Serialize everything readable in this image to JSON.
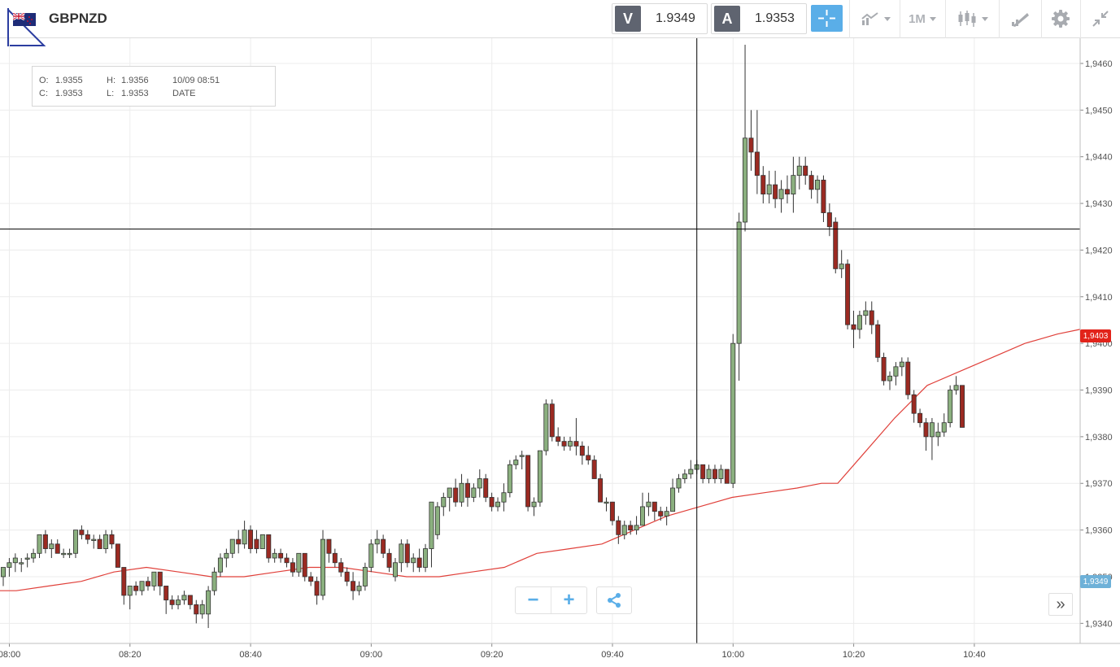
{
  "toolbar": {
    "symbol": "GBPNZD",
    "flag_icon": "gb-nz-flag-icon",
    "sell": {
      "letter": "V",
      "price": "1.9349"
    },
    "buy": {
      "letter": "A",
      "price": "1.9353"
    },
    "timeframe_label": "1M",
    "icons": [
      "crosshair-icon",
      "chart-type-icon",
      "timeframe-icon",
      "candlestick-icon",
      "drawing-tools-icon",
      "settings-icon",
      "collapse-icon"
    ]
  },
  "ohlc": {
    "o_label": "O:",
    "o_value": "1.9355",
    "h_label": "H:",
    "h_value": "1.9356",
    "c_label": "C:",
    "c_value": "1.9353",
    "l_label": "L:",
    "l_value": "1.9353",
    "datetime": "10/09 08:51",
    "date_label": "DATE"
  },
  "price_tags": {
    "current": "1,9403",
    "bid": "1,9349"
  },
  "controls": {
    "zoom_out": "−",
    "zoom_in": "+",
    "expand": "»"
  },
  "colors": {
    "up": "#8bb07f",
    "down": "#9b2a22",
    "ma": "#e0403a",
    "crosshair": "#000000",
    "accent": "#5aaee8"
  },
  "chart_data": {
    "type": "candlestick",
    "symbol": "GBPNZD",
    "timeframe": "1M",
    "x_ticks": [
      "08:00",
      "08:20",
      "08:40",
      "09:00",
      "09:20",
      "09:40",
      "10:00",
      "10:20",
      "10:40"
    ],
    "y_ticks": [
      "1,9340",
      "1,9350",
      "1,9360",
      "1,9370",
      "1,9380",
      "1,9390",
      "1,9400",
      "1,9410",
      "1,9420",
      "1,9430",
      "1,9440",
      "1,9450",
      "1,9460"
    ],
    "ylim": [
      1.93357,
      1.94654
    ],
    "crosshair_price": 1.94245,
    "grid": true,
    "candles": [
      [
        1.935,
        1.9352,
        1.9348,
        1.9352
      ],
      [
        1.9352,
        1.9354,
        1.935,
        1.9353
      ],
      [
        1.9353,
        1.9355,
        1.9351,
        1.9354
      ],
      [
        1.9353,
        1.9354,
        1.9351,
        1.9353
      ],
      [
        1.9354,
        1.9355,
        1.9352,
        1.9354
      ],
      [
        1.9354,
        1.9356,
        1.9353,
        1.9355
      ],
      [
        1.9355,
        1.9359,
        1.9354,
        1.9359
      ],
      [
        1.9359,
        1.936,
        1.9355,
        1.9356
      ],
      [
        1.9356,
        1.9358,
        1.9354,
        1.9357
      ],
      [
        1.9357,
        1.9358,
        1.9355,
        1.9355
      ],
      [
        1.9355,
        1.9356,
        1.9354,
        1.9355
      ],
      [
        1.9355,
        1.9356,
        1.9354,
        1.9355
      ],
      [
        1.9355,
        1.936,
        1.9354,
        1.936
      ],
      [
        1.936,
        1.9361,
        1.9358,
        1.9359
      ],
      [
        1.9359,
        1.936,
        1.9357,
        1.9358
      ],
      [
        1.9358,
        1.9359,
        1.9356,
        1.9358
      ],
      [
        1.9358,
        1.9359,
        1.9356,
        1.9356
      ],
      [
        1.9356,
        1.936,
        1.9355,
        1.9359
      ],
      [
        1.9359,
        1.936,
        1.9356,
        1.9357
      ],
      [
        1.9357,
        1.9357,
        1.9352,
        1.9352
      ],
      [
        1.9352,
        1.9352,
        1.9344,
        1.9346
      ],
      [
        1.9346,
        1.9348,
        1.9343,
        1.9348
      ],
      [
        1.9348,
        1.9349,
        1.9346,
        1.9347
      ],
      [
        1.9347,
        1.9349,
        1.9346,
        1.9349
      ],
      [
        1.9349,
        1.935,
        1.9347,
        1.9348
      ],
      [
        1.9348,
        1.9351,
        1.9347,
        1.9351
      ],
      [
        1.9351,
        1.9351,
        1.9346,
        1.9348
      ],
      [
        1.9348,
        1.9348,
        1.9342,
        1.9345
      ],
      [
        1.9345,
        1.9346,
        1.9343,
        1.9344
      ],
      [
        1.9344,
        1.9346,
        1.9343,
        1.9345
      ],
      [
        1.9345,
        1.9347,
        1.9344,
        1.9346
      ],
      [
        1.9346,
        1.9346,
        1.9343,
        1.9344
      ],
      [
        1.9344,
        1.9345,
        1.934,
        1.9342
      ],
      [
        1.9342,
        1.9345,
        1.9341,
        1.9344
      ],
      [
        1.9342,
        1.9348,
        1.9339,
        1.9347
      ],
      [
        1.9347,
        1.9352,
        1.9346,
        1.9351
      ],
      [
        1.9351,
        1.9355,
        1.935,
        1.9354
      ],
      [
        1.9354,
        1.9356,
        1.9352,
        1.9355
      ],
      [
        1.9355,
        1.9358,
        1.9354,
        1.9358
      ],
      [
        1.9358,
        1.936,
        1.9355,
        1.9357
      ],
      [
        1.9357,
        1.9362,
        1.9356,
        1.936
      ],
      [
        1.936,
        1.9361,
        1.9355,
        1.9356
      ],
      [
        1.9358,
        1.936,
        1.9355,
        1.9356
      ],
      [
        1.9356,
        1.9359,
        1.9356,
        1.9359
      ],
      [
        1.9359,
        1.9359,
        1.9353,
        1.9354
      ],
      [
        1.9354,
        1.9356,
        1.9353,
        1.9355
      ],
      [
        1.9355,
        1.9356,
        1.9353,
        1.9354
      ],
      [
        1.9354,
        1.9355,
        1.9352,
        1.9353
      ],
      [
        1.9353,
        1.9354,
        1.935,
        1.9351
      ],
      [
        1.9351,
        1.9355,
        1.935,
        1.9355
      ],
      [
        1.9355,
        1.9355,
        1.9349,
        1.935
      ],
      [
        1.935,
        1.9351,
        1.9348,
        1.9349
      ],
      [
        1.9349,
        1.935,
        1.9344,
        1.9346
      ],
      [
        1.9346,
        1.936,
        1.9345,
        1.9358
      ],
      [
        1.9358,
        1.9358,
        1.9353,
        1.9355
      ],
      [
        1.9355,
        1.9356,
        1.9352,
        1.9353
      ],
      [
        1.9353,
        1.9354,
        1.935,
        1.9351
      ],
      [
        1.9351,
        1.9352,
        1.9348,
        1.9349
      ],
      [
        1.9349,
        1.9351,
        1.9345,
        1.9347
      ],
      [
        1.9347,
        1.9349,
        1.9346,
        1.9348
      ],
      [
        1.9348,
        1.9353,
        1.9347,
        1.9352
      ],
      [
        1.9352,
        1.9358,
        1.9351,
        1.9357
      ],
      [
        1.9357,
        1.936,
        1.9355,
        1.9358
      ],
      [
        1.9358,
        1.9359,
        1.9354,
        1.9355
      ],
      [
        1.9355,
        1.9356,
        1.9351,
        1.9352
      ],
      [
        1.935,
        1.9354,
        1.9349,
        1.9353
      ],
      [
        1.9353,
        1.9358,
        1.9351,
        1.9357
      ],
      [
        1.9357,
        1.9358,
        1.9352,
        1.9353
      ],
      [
        1.9353,
        1.9355,
        1.9351,
        1.9354
      ],
      [
        1.9354,
        1.9356,
        1.9351,
        1.9352
      ],
      [
        1.9352,
        1.9357,
        1.9351,
        1.9356
      ],
      [
        1.9356,
        1.9366,
        1.9352,
        1.9366
      ],
      [
        1.9359,
        1.9366,
        1.9358,
        1.9365
      ],
      [
        1.9365,
        1.9368,
        1.9363,
        1.9367
      ],
      [
        1.9367,
        1.9369,
        1.9364,
        1.9369
      ],
      [
        1.9369,
        1.9371,
        1.9365,
        1.9366
      ],
      [
        1.9366,
        1.9372,
        1.9365,
        1.937
      ],
      [
        1.937,
        1.9371,
        1.9365,
        1.9367
      ],
      [
        1.9367,
        1.937,
        1.9366,
        1.9369
      ],
      [
        1.9369,
        1.9373,
        1.9367,
        1.9371
      ],
      [
        1.9371,
        1.9372,
        1.9366,
        1.9367
      ],
      [
        1.9367,
        1.9368,
        1.9364,
        1.9365
      ],
      [
        1.9365,
        1.9367,
        1.9364,
        1.9366
      ],
      [
        1.9366,
        1.937,
        1.9364,
        1.9368
      ],
      [
        1.9368,
        1.9375,
        1.9367,
        1.9374
      ],
      [
        1.9374,
        1.9376,
        1.9373,
        1.9375
      ],
      [
        1.9376,
        1.9377,
        1.9373,
        1.9376
      ],
      [
        1.9376,
        1.9376,
        1.9364,
        1.9365
      ],
      [
        1.9365,
        1.9367,
        1.9363,
        1.9366
      ],
      [
        1.9366,
        1.9377,
        1.9365,
        1.9377
      ],
      [
        1.9377,
        1.9388,
        1.9376,
        1.9387
      ],
      [
        1.9387,
        1.9388,
        1.9379,
        1.938
      ],
      [
        1.938,
        1.9382,
        1.9378,
        1.9379
      ],
      [
        1.9379,
        1.938,
        1.9377,
        1.9378
      ],
      [
        1.9378,
        1.938,
        1.9377,
        1.9379
      ],
      [
        1.9379,
        1.9384,
        1.9376,
        1.9378
      ],
      [
        1.9378,
        1.9379,
        1.9374,
        1.9376
      ],
      [
        1.9376,
        1.9378,
        1.9374,
        1.9375
      ],
      [
        1.9375,
        1.9376,
        1.9371,
        1.9371
      ],
      [
        1.9371,
        1.9372,
        1.9366,
        1.9366
      ],
      [
        1.9366,
        1.9367,
        1.9364,
        1.9366
      ],
      [
        1.9366,
        1.9366,
        1.9361,
        1.9362
      ],
      [
        1.9362,
        1.9363,
        1.9357,
        1.9359
      ],
      [
        1.9359,
        1.9362,
        1.9358,
        1.9361
      ],
      [
        1.9361,
        1.9362,
        1.9359,
        1.936
      ],
      [
        1.936,
        1.9363,
        1.9359,
        1.9361
      ],
      [
        1.9361,
        1.9368,
        1.9361,
        1.9365
      ],
      [
        1.9365,
        1.9368,
        1.9363,
        1.9366
      ],
      [
        1.9366,
        1.9366,
        1.9362,
        1.9364
      ],
      [
        1.9364,
        1.9365,
        1.9362,
        1.9363
      ],
      [
        1.9363,
        1.9365,
        1.9361,
        1.9364
      ],
      [
        1.9364,
        1.9371,
        1.9364,
        1.9369
      ],
      [
        1.9369,
        1.9372,
        1.9368,
        1.9371
      ],
      [
        1.9371,
        1.9373,
        1.937,
        1.9372
      ],
      [
        1.9372,
        1.9375,
        1.9371,
        1.9373
      ],
      [
        1.9373,
        1.9375,
        1.9372,
        1.9374
      ],
      [
        1.9374,
        1.9374,
        1.937,
        1.9371
      ],
      [
        1.9371,
        1.9374,
        1.937,
        1.9373
      ],
      [
        1.9373,
        1.9374,
        1.937,
        1.9371
      ],
      [
        1.9371,
        1.9374,
        1.937,
        1.9373
      ],
      [
        1.9373,
        1.9373,
        1.937,
        1.937
      ],
      [
        1.937,
        1.9402,
        1.9369,
        1.94
      ],
      [
        1.94,
        1.9428,
        1.9392,
        1.9426
      ],
      [
        1.9426,
        1.9464,
        1.9424,
        1.9444
      ],
      [
        1.9444,
        1.945,
        1.9437,
        1.9441
      ],
      [
        1.9441,
        1.945,
        1.9432,
        1.9436
      ],
      [
        1.9436,
        1.9438,
        1.943,
        1.9432
      ],
      [
        1.9432,
        1.9437,
        1.943,
        1.9434
      ],
      [
        1.9434,
        1.9437,
        1.9429,
        1.9431
      ],
      [
        1.9431,
        1.9435,
        1.9428,
        1.9433
      ],
      [
        1.9433,
        1.9436,
        1.943,
        1.9432
      ],
      [
        1.9432,
        1.944,
        1.9428,
        1.9436
      ],
      [
        1.9436,
        1.944,
        1.9433,
        1.9438
      ],
      [
        1.9438,
        1.944,
        1.9434,
        1.9436
      ],
      [
        1.9436,
        1.9437,
        1.9431,
        1.9433
      ],
      [
        1.9433,
        1.9436,
        1.943,
        1.9435
      ],
      [
        1.9435,
        1.9436,
        1.9426,
        1.9428
      ],
      [
        1.9428,
        1.943,
        1.9423,
        1.9425
      ],
      [
        1.9426,
        1.9427,
        1.9415,
        1.9416
      ],
      [
        1.9416,
        1.942,
        1.9414,
        1.9417
      ],
      [
        1.9417,
        1.9418,
        1.9403,
        1.9404
      ],
      [
        1.9404,
        1.9407,
        1.9399,
        1.9403
      ],
      [
        1.9403,
        1.9407,
        1.9401,
        1.9406
      ],
      [
        1.9406,
        1.9409,
        1.9404,
        1.9407
      ],
      [
        1.9407,
        1.9409,
        1.9402,
        1.9404
      ],
      [
        1.9404,
        1.9405,
        1.9396,
        1.9397
      ],
      [
        1.9397,
        1.9398,
        1.9391,
        1.9392
      ],
      [
        1.9392,
        1.9394,
        1.939,
        1.9393
      ],
      [
        1.9393,
        1.9396,
        1.9391,
        1.9395
      ],
      [
        1.9395,
        1.9397,
        1.9393,
        1.9396
      ],
      [
        1.9396,
        1.9397,
        1.9388,
        1.9389
      ],
      [
        1.9389,
        1.939,
        1.9383,
        1.9385
      ],
      [
        1.9385,
        1.9386,
        1.9382,
        1.9383
      ],
      [
        1.9383,
        1.9384,
        1.9377,
        1.938
      ],
      [
        1.938,
        1.9384,
        1.9375,
        1.9383
      ],
      [
        1.938,
        1.9383,
        1.9378,
        1.9381
      ],
      [
        1.9381,
        1.9385,
        1.938,
        1.9383
      ],
      [
        1.9383,
        1.9391,
        1.9382,
        1.939
      ],
      [
        1.939,
        1.9393,
        1.9389,
        1.9391
      ],
      [
        1.9391,
        1.9391,
        1.9382,
        1.9382
      ]
    ],
    "ma": [
      [
        0,
        1.9347
      ],
      [
        20,
        1.9347
      ],
      [
        60,
        1.9348
      ],
      [
        100,
        1.9349
      ],
      [
        140,
        1.9351
      ],
      [
        180,
        1.9352
      ],
      [
        220,
        1.9351
      ],
      [
        260,
        1.935
      ],
      [
        300,
        1.935
      ],
      [
        340,
        1.9351
      ],
      [
        380,
        1.9352
      ],
      [
        420,
        1.9352
      ],
      [
        460,
        1.9351
      ],
      [
        500,
        1.935
      ],
      [
        540,
        1.935
      ],
      [
        580,
        1.9351
      ],
      [
        620,
        1.9352
      ],
      [
        660,
        1.9355
      ],
      [
        700,
        1.9356
      ],
      [
        740,
        1.9357
      ],
      [
        780,
        1.936
      ],
      [
        820,
        1.9363
      ],
      [
        860,
        1.9365
      ],
      [
        900,
        1.9367
      ],
      [
        940,
        1.9368
      ],
      [
        980,
        1.9369
      ],
      [
        1010,
        1.937
      ],
      [
        1030,
        1.937
      ],
      [
        1060,
        1.9376
      ],
      [
        1100,
        1.9384
      ],
      [
        1140,
        1.9391
      ],
      [
        1180,
        1.9394
      ],
      [
        1220,
        1.9397
      ],
      [
        1260,
        1.94
      ],
      [
        1300,
        1.9402
      ],
      [
        1328,
        1.9403
      ]
    ]
  }
}
